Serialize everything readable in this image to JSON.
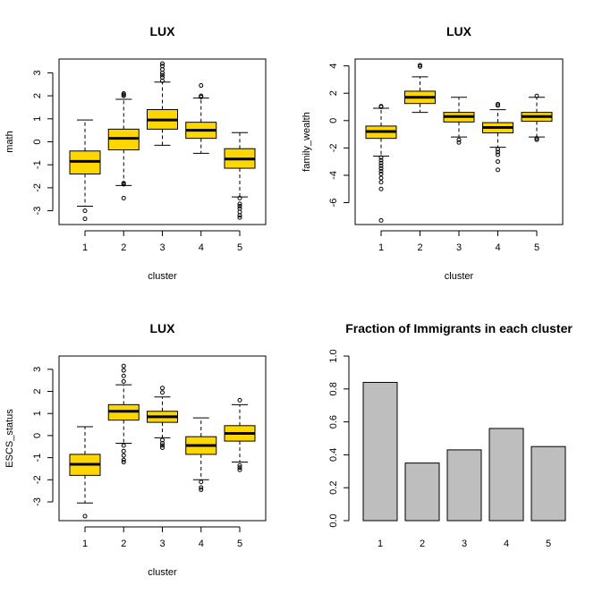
{
  "colors": {
    "box_fill": "#FFD700",
    "bar_fill": "#BEBEBE",
    "stroke": "#000000"
  },
  "chart_data": [
    {
      "type": "boxplot",
      "title": "LUX",
      "xlabel": "cluster",
      "ylabel": "math",
      "categories": [
        "1",
        "2",
        "3",
        "4",
        "5"
      ],
      "ylim": [
        -3.6,
        3.6
      ],
      "yticks": [
        -3,
        -2,
        -1,
        0,
        1,
        2,
        3
      ],
      "boxes": [
        {
          "category": "1",
          "whisker_low": -2.8,
          "q1": -1.4,
          "median": -0.85,
          "q3": -0.4,
          "whisker_high": 0.95,
          "outliers": [
            -3.0,
            -3.35
          ]
        },
        {
          "category": "2",
          "whisker_low": -1.9,
          "q1": -0.35,
          "median": 0.15,
          "q3": 0.55,
          "whisker_high": 1.85,
          "outliers": [
            -2.45,
            -1.85,
            -1.8,
            2.0,
            2.05,
            2.1
          ]
        },
        {
          "category": "3",
          "whisker_low": -0.15,
          "q1": 0.55,
          "median": 0.95,
          "q3": 1.4,
          "whisker_high": 2.6,
          "outliers": [
            2.65,
            2.8,
            2.9,
            3.0,
            3.15,
            3.3,
            3.4
          ]
        },
        {
          "category": "4",
          "whisker_low": -0.5,
          "q1": 0.15,
          "median": 0.5,
          "q3": 0.85,
          "whisker_high": 1.9,
          "outliers": [
            1.95,
            2.0,
            2.45
          ]
        },
        {
          "category": "5",
          "whisker_low": -2.4,
          "q1": -1.15,
          "median": -0.75,
          "q3": -0.3,
          "whisker_high": 0.4,
          "outliers": [
            -2.45,
            -2.7,
            -2.8,
            -2.9,
            -3.05,
            -3.2,
            -3.3
          ]
        }
      ]
    },
    {
      "type": "boxplot",
      "title": "LUX",
      "xlabel": "cluster",
      "ylabel": "family_wealth",
      "categories": [
        "1",
        "2",
        "3",
        "4",
        "5"
      ],
      "ylim": [
        -7.6,
        4.5
      ],
      "yticks": [
        -6,
        -4,
        -2,
        0,
        2,
        4
      ],
      "boxes": [
        {
          "category": "1",
          "whisker_low": -2.6,
          "q1": -1.3,
          "median": -0.8,
          "q3": -0.4,
          "whisker_high": 0.9,
          "outliers": [
            1.0,
            1.05,
            -2.7,
            -2.9,
            -3.1,
            -3.3,
            -3.5,
            -3.7,
            -3.9,
            -4.2,
            -4.5,
            -5.0,
            -7.3
          ]
        },
        {
          "category": "2",
          "whisker_low": 0.6,
          "q1": 1.25,
          "median": 1.7,
          "q3": 2.15,
          "whisker_high": 3.2,
          "outliers": [
            3.95,
            4.05
          ]
        },
        {
          "category": "3",
          "whisker_low": -1.2,
          "q1": -0.1,
          "median": 0.3,
          "q3": 0.6,
          "whisker_high": 1.7,
          "outliers": [
            -1.4,
            -1.6
          ]
        },
        {
          "category": "4",
          "whisker_low": -1.95,
          "q1": -0.9,
          "median": -0.5,
          "q3": -0.15,
          "whisker_high": 0.8,
          "outliers": [
            1.1,
            1.2,
            -2.1,
            -2.3,
            -2.5,
            -3.0,
            -3.6
          ]
        },
        {
          "category": "5",
          "whisker_low": -1.2,
          "q1": -0.05,
          "median": 0.3,
          "q3": 0.6,
          "whisker_high": 1.7,
          "outliers": [
            1.8,
            -1.3,
            -1.4
          ]
        }
      ]
    },
    {
      "type": "boxplot",
      "title": "LUX",
      "xlabel": "cluster",
      "ylabel": "ESCS_status",
      "categories": [
        "1",
        "2",
        "3",
        "4",
        "5"
      ],
      "ylim": [
        -3.85,
        3.6
      ],
      "yticks": [
        -3,
        -2,
        -1,
        0,
        1,
        2,
        3
      ],
      "boxes": [
        {
          "category": "1",
          "whisker_low": -3.05,
          "q1": -1.8,
          "median": -1.3,
          "q3": -0.85,
          "whisker_high": 0.4,
          "outliers": [
            -3.65
          ]
        },
        {
          "category": "2",
          "whisker_low": -0.35,
          "q1": 0.7,
          "median": 1.1,
          "q3": 1.4,
          "whisker_high": 2.3,
          "outliers": [
            -0.45,
            -0.7,
            -0.9,
            -1.1,
            -1.2,
            2.45,
            2.7,
            2.95,
            3.15
          ]
        },
        {
          "category": "3",
          "whisker_low": -0.1,
          "q1": 0.6,
          "median": 0.85,
          "q3": 1.1,
          "whisker_high": 1.75,
          "outliers": [
            -0.2,
            -0.35,
            -0.45,
            -0.55,
            1.95,
            2.15
          ]
        },
        {
          "category": "4",
          "whisker_low": -2.0,
          "q1": -0.85,
          "median": -0.45,
          "q3": -0.05,
          "whisker_high": 0.8,
          "outliers": [
            -2.1,
            -2.35,
            -2.45
          ]
        },
        {
          "category": "5",
          "whisker_low": -1.2,
          "q1": -0.25,
          "median": 0.1,
          "q3": 0.45,
          "whisker_high": 1.4,
          "outliers": [
            -1.35,
            -1.45,
            -1.55,
            1.6
          ]
        }
      ]
    },
    {
      "type": "bar",
      "title": "Fraction of Immigrants in each cluster",
      "xlabel": "",
      "ylabel": "",
      "categories": [
        "1",
        "2",
        "3",
        "4",
        "5"
      ],
      "values": [
        0.84,
        0.35,
        0.43,
        0.56,
        0.45
      ],
      "ylim": [
        0,
        1.0
      ],
      "yticks": [
        0.0,
        0.2,
        0.4,
        0.6,
        0.8,
        1.0
      ],
      "ytick_labels": [
        "0.0",
        "0.2",
        "0.4",
        "0.6",
        "0.8",
        "1.0"
      ]
    }
  ]
}
